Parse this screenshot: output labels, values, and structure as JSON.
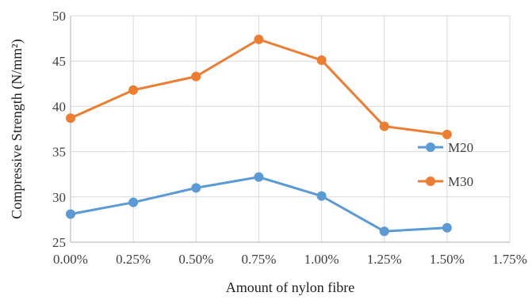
{
  "chart_data": {
    "type": "line",
    "x": [
      "0.00%",
      "0.25%",
      "0.50%",
      "0.75%",
      "1.00%",
      "1.25%",
      "1.50%"
    ],
    "x_ticks": [
      "0.00%",
      "0.25%",
      "0.50%",
      "0.75%",
      "1.00%",
      "1.25%",
      "1.50%",
      "1.75%"
    ],
    "xlim": [
      0,
      1.75
    ],
    "ylim": [
      25,
      50
    ],
    "y_ticks": [
      25,
      30,
      35,
      40,
      45,
      50
    ],
    "xlabel": "Amount of nylon fibre",
    "ylabel": "Compressive Strength (N/mm²)",
    "grid": "vertical-and-horizontal",
    "legend_position": "right",
    "series": [
      {
        "name": "M20",
        "color": "#5b9bd5",
        "values": [
          28.1,
          29.4,
          31.0,
          32.2,
          30.1,
          26.2,
          26.6
        ]
      },
      {
        "name": "M30",
        "color": "#ed7d31",
        "values": [
          38.7,
          41.8,
          43.3,
          47.4,
          45.1,
          37.8,
          36.9
        ]
      }
    ]
  }
}
